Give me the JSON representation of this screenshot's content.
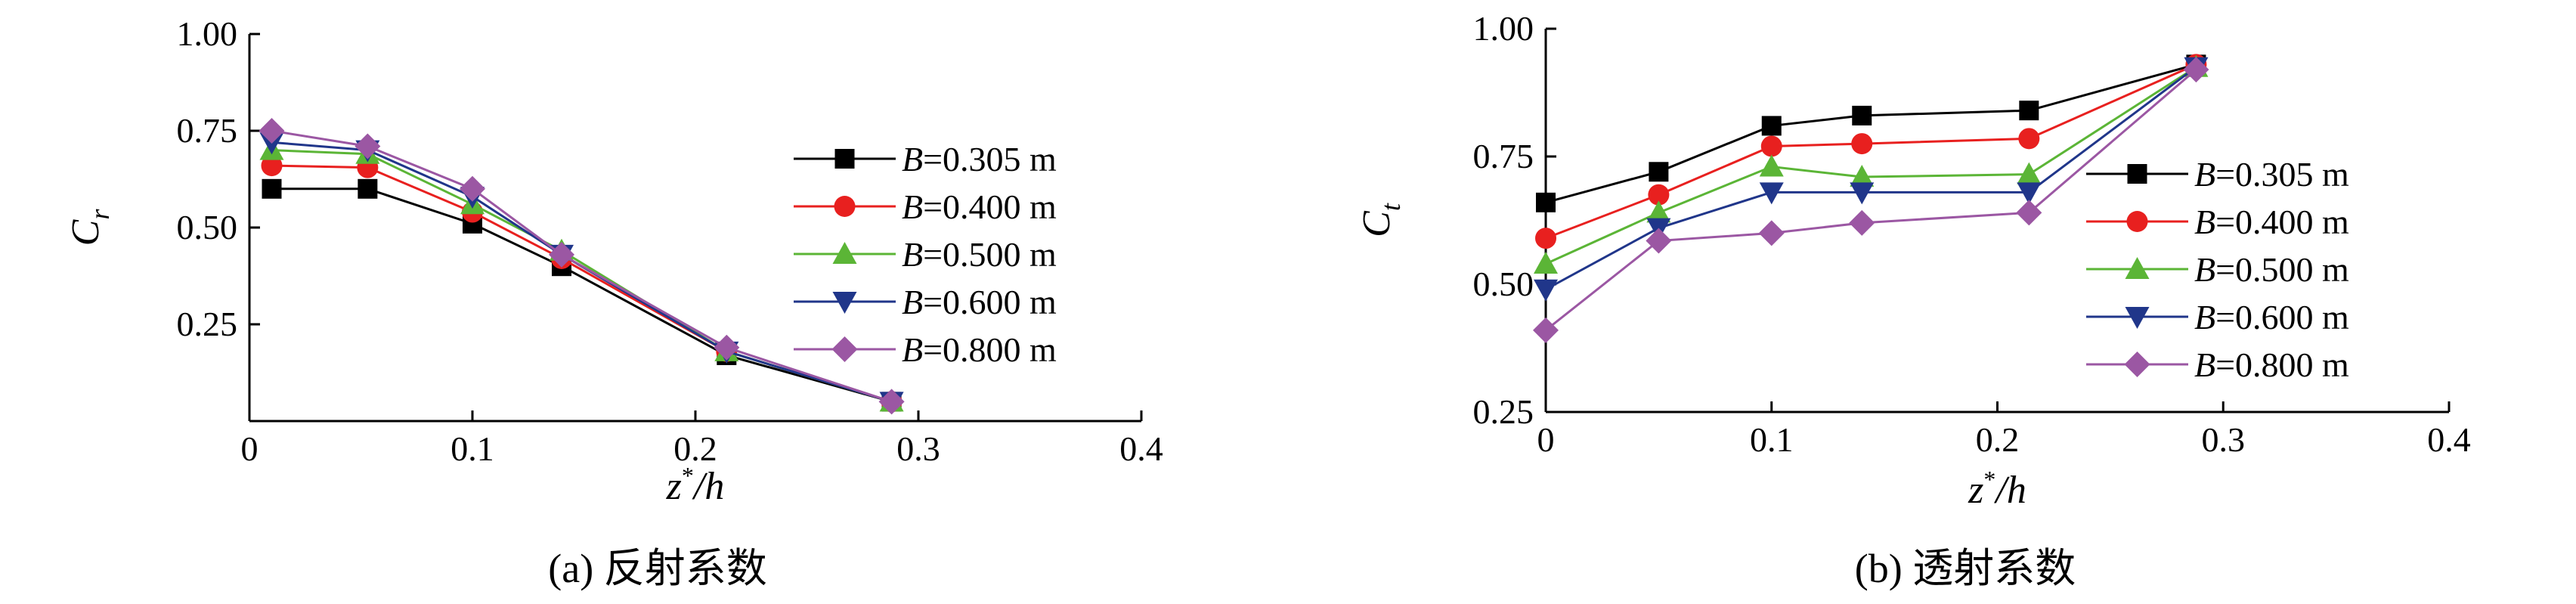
{
  "charts": [
    {
      "id": "a",
      "type": "line",
      "caption": "(a) 反射系数",
      "ylabel_main": "C",
      "ylabel_sub": "r",
      "xlabel_main": "z",
      "xlabel_sup": "*",
      "xlabel_tail": "/h",
      "xlim": [
        0,
        0.4
      ],
      "ylim": [
        0,
        1.0
      ],
      "xticks": [
        0,
        0.1,
        0.2,
        0.3,
        0.4
      ],
      "xtick_labels": [
        "0",
        "0.1",
        "0.2",
        "0.3",
        "0.4"
      ],
      "yticks": [
        0.25,
        0.5,
        0.75,
        1.0
      ],
      "ytick_labels": [
        "0.25",
        "0.50",
        "0.75",
        "1.00"
      ],
      "legend_position": "right",
      "x": [
        0.01,
        0.053,
        0.1,
        0.14,
        0.214,
        0.288
      ],
      "series": [
        {
          "name": "B=0.305 m",
          "label_var": "B",
          "label_rest": "=0.305 m",
          "marker": "square",
          "color": "#000000",
          "values": [
            0.6,
            0.6,
            0.51,
            0.4,
            0.17,
            0.05
          ]
        },
        {
          "name": "B=0.400 m",
          "label_var": "B",
          "label_rest": "=0.400 m",
          "marker": "circle",
          "color": "#e8201f",
          "values": [
            0.66,
            0.655,
            0.54,
            0.42,
            0.18,
            0.05
          ]
        },
        {
          "name": "B=0.500 m",
          "label_var": "B",
          "label_rest": "=0.500 m",
          "marker": "triangle-up",
          "color": "#5bb536",
          "values": [
            0.7,
            0.69,
            0.56,
            0.44,
            0.18,
            0.05
          ]
        },
        {
          "name": "B=0.600 m",
          "label_var": "B",
          "label_rest": "=0.600 m",
          "marker": "triangle-down",
          "color": "#20368a",
          "values": [
            0.72,
            0.7,
            0.58,
            0.43,
            0.18,
            0.05
          ]
        },
        {
          "name": "B=0.800 m",
          "label_var": "B",
          "label_rest": "=0.800 m",
          "marker": "diamond",
          "color": "#9b57a3",
          "values": [
            0.75,
            0.71,
            0.6,
            0.43,
            0.19,
            0.05
          ]
        }
      ]
    },
    {
      "id": "b",
      "type": "line",
      "caption": "(b) 透射系数",
      "ylabel_main": "C",
      "ylabel_sub": "t",
      "xlabel_main": "z",
      "xlabel_sup": "*",
      "xlabel_tail": "/h",
      "xlim": [
        0,
        0.4
      ],
      "ylim": [
        0.25,
        1.0
      ],
      "xticks": [
        0,
        0.1,
        0.2,
        0.3,
        0.4
      ],
      "xtick_labels": [
        "0",
        "0.1",
        "0.2",
        "0.3",
        "0.4"
      ],
      "yticks": [
        0.25,
        0.5,
        0.75,
        1.0
      ],
      "ytick_labels": [
        "0.25",
        "0.50",
        "0.75",
        "1.00"
      ],
      "legend_position": "right",
      "x": [
        0,
        0.05,
        0.1,
        0.14,
        0.214,
        0.288
      ],
      "series": [
        {
          "name": "B=0.305 m",
          "label_var": "B",
          "label_rest": "=0.305 m",
          "marker": "square",
          "color": "#000000",
          "values": [
            0.66,
            0.72,
            0.81,
            0.83,
            0.84,
            0.93
          ]
        },
        {
          "name": "B=0.400 m",
          "label_var": "B",
          "label_rest": "=0.400 m",
          "marker": "circle",
          "color": "#e8201f",
          "values": [
            0.59,
            0.675,
            0.77,
            0.775,
            0.785,
            0.93
          ]
        },
        {
          "name": "B=0.500 m",
          "label_var": "B",
          "label_rest": "=0.500 m",
          "marker": "triangle-up",
          "color": "#5bb536",
          "values": [
            0.54,
            0.64,
            0.73,
            0.71,
            0.715,
            0.925
          ]
        },
        {
          "name": "B=0.600 m",
          "label_var": "B",
          "label_rest": "=0.600 m",
          "marker": "triangle-down",
          "color": "#20368a",
          "values": [
            0.49,
            0.61,
            0.68,
            0.68,
            0.68,
            0.925
          ]
        },
        {
          "name": "B=0.800 m",
          "label_var": "B",
          "label_rest": "=0.800 m",
          "marker": "diamond",
          "color": "#9b57a3",
          "values": [
            0.41,
            0.585,
            0.6,
            0.62,
            0.64,
            0.92
          ]
        }
      ]
    }
  ]
}
